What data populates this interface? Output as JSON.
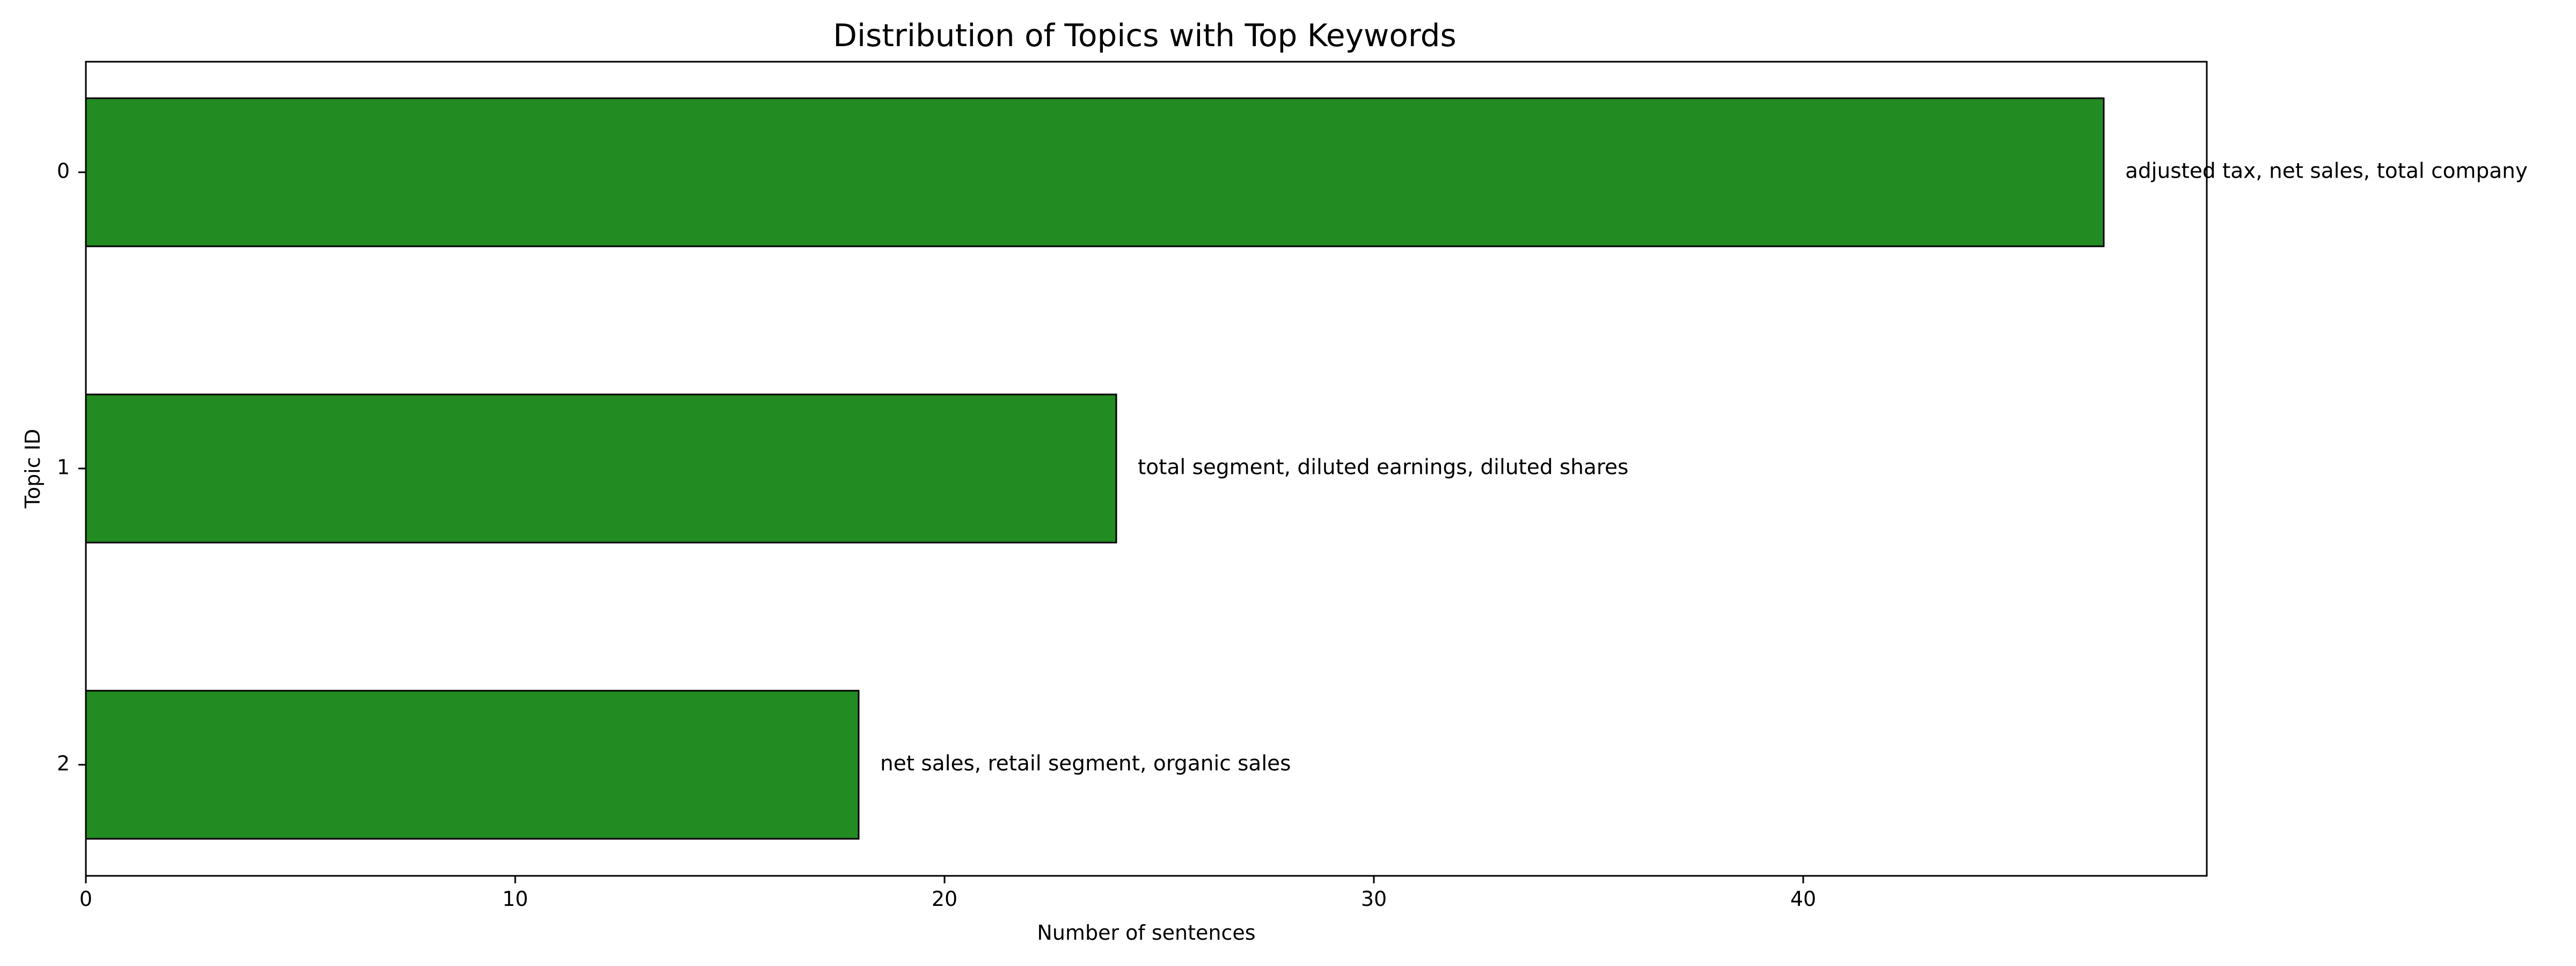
{
  "chart_data": {
    "type": "bar",
    "orientation": "horizontal",
    "title": "Distribution of Topics with Top Keywords",
    "xlabel": "Number of sentences",
    "ylabel": "Topic ID",
    "xlim": [
      0,
      49.3
    ],
    "x_ticks": [
      0,
      10,
      20,
      30,
      40
    ],
    "categories": [
      "0",
      "1",
      "2"
    ],
    "values": [
      47,
      24,
      18
    ],
    "bar_labels": [
      "adjusted tax, net sales, total company",
      "total segment, diluted earnings, diluted shares",
      "net sales, retail segment, organic sales"
    ],
    "bar_color": "#228b22",
    "edge_color": "#000000",
    "grid": false,
    "legend": "none"
  }
}
